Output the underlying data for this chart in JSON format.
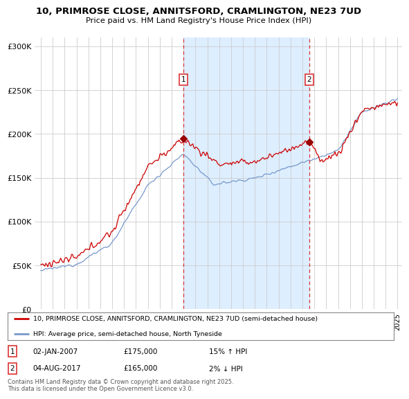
{
  "title": "10, PRIMROSE CLOSE, ANNITSFORD, CRAMLINGTON, NE23 7UD",
  "subtitle": "Price paid vs. HM Land Registry's House Price Index (HPI)",
  "red_label": "10, PRIMROSE CLOSE, ANNITSFORD, CRAMLINGTON, NE23 7UD (semi-detached house)",
  "blue_label": "HPI: Average price, semi-detached house, North Tyneside",
  "footer": "Contains HM Land Registry data © Crown copyright and database right 2025.\nThis data is licensed under the Open Government Licence v3.0.",
  "transactions": [
    {
      "label": "1",
      "date": "02-JAN-2007",
      "price": "£175,000",
      "hpi_change": "15% ↑ HPI",
      "year": 2007.0
    },
    {
      "label": "2",
      "date": "04-AUG-2017",
      "price": "£165,000",
      "hpi_change": "2% ↓ HPI",
      "year": 2017.58
    }
  ],
  "ylim": [
    0,
    310000
  ],
  "yticks": [
    0,
    50000,
    100000,
    150000,
    200000,
    250000,
    300000
  ],
  "ytick_labels": [
    "£0",
    "£50K",
    "£100K",
    "£150K",
    "£200K",
    "£250K",
    "£300K"
  ],
  "plot_bg_color": "#ffffff",
  "shade_color": "#ddeeff",
  "red_color": "#cc0000",
  "blue_color": "#7799cc",
  "dashed_color": "#dd3333",
  "marker_color": "#990000"
}
